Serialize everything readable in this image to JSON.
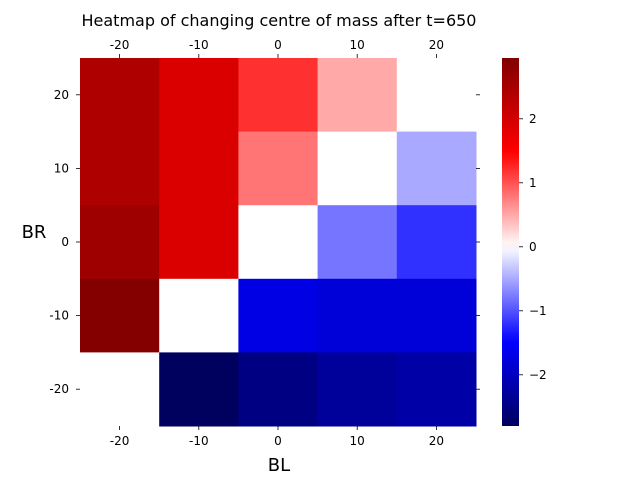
{
  "chart_data": {
    "type": "heatmap",
    "title": "Heatmap of changing centre of mass after t=650",
    "xlabel": "BL",
    "ylabel": "BR",
    "x": [
      -20,
      -10,
      0,
      10,
      20
    ],
    "y": [
      20,
      10,
      0,
      -10,
      -20
    ],
    "x_tick_labels": [
      "-20",
      "-10",
      "0",
      "10",
      "20"
    ],
    "y_tick_labels": [
      "20",
      "10",
      "0",
      "-10",
      "-20"
    ],
    "values": [
      [
        2.4,
        1.9,
        1.2,
        0.5,
        0.0
      ],
      [
        2.4,
        1.9,
        0.8,
        0.0,
        -0.5
      ],
      [
        2.6,
        1.9,
        0.0,
        -0.8,
        -1.2
      ],
      [
        2.9,
        0.0,
        -1.7,
        -1.8,
        -1.8
      ],
      [
        0.0,
        -2.8,
        -2.5,
        -2.3,
        -2.2
      ]
    ],
    "colormap": "seismic",
    "vmin": -2.8,
    "vmax": 2.95,
    "colorbar_ticks": [
      -2,
      -1,
      0,
      1,
      2
    ],
    "colorbar_tick_labels": [
      "−2",
      "−1",
      "0",
      "1",
      "2"
    ],
    "x_ticks_top": true,
    "y_ticks_right": true,
    "grid": false
  }
}
